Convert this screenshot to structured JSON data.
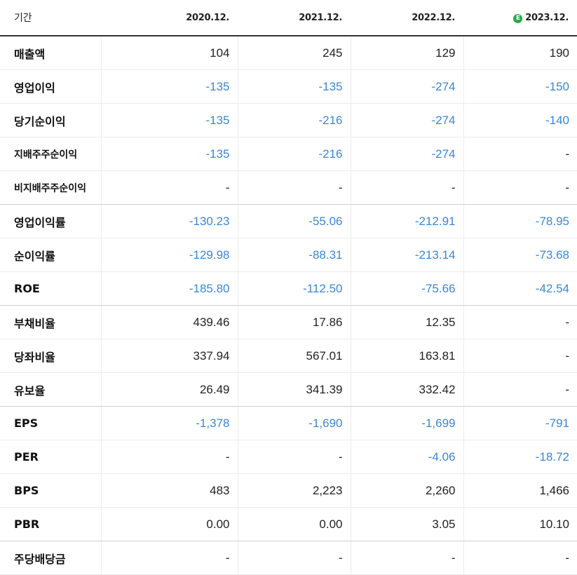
{
  "header": {
    "label": "기간",
    "columns": [
      "2020.12.",
      "2021.12.",
      "2022.12.",
      "2023.12."
    ],
    "estimate_badge": "E"
  },
  "colors": {
    "negative": "#3a86d8",
    "text": "#222222"
  },
  "rows": [
    {
      "label": "매출액",
      "values": [
        "104",
        "245",
        "129",
        "190"
      ]
    },
    {
      "label": "영업이익",
      "values": [
        "-135",
        "-135",
        "-274",
        "-150"
      ]
    },
    {
      "label": "당기순이익",
      "values": [
        "-135",
        "-216",
        "-274",
        "-140"
      ]
    },
    {
      "label": "지배주주순이익",
      "values": [
        "-135",
        "-216",
        "-274",
        "-"
      ]
    },
    {
      "label": "비지배주주순이익",
      "values": [
        "-",
        "-",
        "-",
        "-"
      ]
    },
    {
      "label": "영업이익률",
      "values": [
        "-130.23",
        "-55.06",
        "-212.91",
        "-78.95"
      ]
    },
    {
      "label": "순이익률",
      "values": [
        "-129.98",
        "-88.31",
        "-213.14",
        "-73.68"
      ]
    },
    {
      "label": "ROE",
      "values": [
        "-185.80",
        "-112.50",
        "-75.66",
        "-42.54"
      ]
    },
    {
      "label": "부채비율",
      "values": [
        "439.46",
        "17.86",
        "12.35",
        "-"
      ]
    },
    {
      "label": "당좌비율",
      "values": [
        "337.94",
        "567.01",
        "163.81",
        "-"
      ]
    },
    {
      "label": "유보율",
      "values": [
        "26.49",
        "341.39",
        "332.42",
        "-"
      ]
    },
    {
      "label": "EPS",
      "values": [
        "-1,378",
        "-1,690",
        "-1,699",
        "-791"
      ]
    },
    {
      "label": "PER",
      "values": [
        "-",
        "-",
        "-4.06",
        "-18.72"
      ]
    },
    {
      "label": "BPS",
      "values": [
        "483",
        "2,223",
        "2,260",
        "1,466"
      ]
    },
    {
      "label": "PBR",
      "values": [
        "0.00",
        "0.00",
        "3.05",
        "10.10"
      ]
    },
    {
      "label": "주당배당금",
      "values": [
        "-",
        "-",
        "-",
        "-"
      ]
    }
  ]
}
